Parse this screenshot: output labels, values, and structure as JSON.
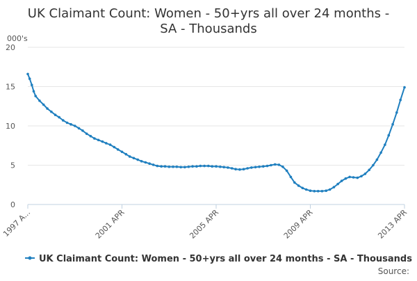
{
  "chart_data": {
    "type": "line",
    "title_line1": "UK Claimant Count: Women - 50+yrs all over 24 months -",
    "title_line2": "SA - Thousands",
    "y_unit": "000's",
    "ylim": [
      0,
      20
    ],
    "y_ticks": [
      0,
      5,
      10,
      15,
      20
    ],
    "xlim": [
      1997.25,
      2013.25
    ],
    "x_ticks": [
      {
        "x": 1997.25,
        "label": "1997 A..."
      },
      {
        "x": 2001.25,
        "label": "2001 APR"
      },
      {
        "x": 2005.25,
        "label": "2005 APR"
      },
      {
        "x": 2009.25,
        "label": "2009 APR"
      },
      {
        "x": 2013.25,
        "label": "2013 APR"
      }
    ],
    "grid": true,
    "legend_position": "bottom",
    "color": "#1f7fbf",
    "series": [
      {
        "name": "UK Claimant Count: Women - 50+yrs all over 24 months - SA - Thousands",
        "points": [
          [
            1997.25,
            16.6
          ],
          [
            1997.33,
            16.0
          ],
          [
            1997.42,
            15.2
          ],
          [
            1997.5,
            14.4
          ],
          [
            1997.58,
            13.8
          ],
          [
            1997.75,
            13.2
          ],
          [
            1997.92,
            12.7
          ],
          [
            1998.08,
            12.2
          ],
          [
            1998.25,
            11.8
          ],
          [
            1998.42,
            11.4
          ],
          [
            1998.58,
            11.1
          ],
          [
            1998.75,
            10.7
          ],
          [
            1998.92,
            10.4
          ],
          [
            1999.08,
            10.2
          ],
          [
            1999.25,
            10.0
          ],
          [
            1999.42,
            9.7
          ],
          [
            1999.58,
            9.4
          ],
          [
            1999.75,
            9.0
          ],
          [
            1999.92,
            8.7
          ],
          [
            2000.08,
            8.4
          ],
          [
            2000.25,
            8.2
          ],
          [
            2000.42,
            8.0
          ],
          [
            2000.58,
            7.8
          ],
          [
            2000.75,
            7.6
          ],
          [
            2000.92,
            7.3
          ],
          [
            2001.08,
            7.0
          ],
          [
            2001.25,
            6.7
          ],
          [
            2001.42,
            6.4
          ],
          [
            2001.58,
            6.1
          ],
          [
            2001.75,
            5.9
          ],
          [
            2001.92,
            5.7
          ],
          [
            2002.08,
            5.5
          ],
          [
            2002.25,
            5.35
          ],
          [
            2002.42,
            5.2
          ],
          [
            2002.58,
            5.05
          ],
          [
            2002.75,
            4.9
          ],
          [
            2002.92,
            4.85
          ],
          [
            2003.08,
            4.85
          ],
          [
            2003.25,
            4.8
          ],
          [
            2003.42,
            4.8
          ],
          [
            2003.58,
            4.8
          ],
          [
            2003.75,
            4.75
          ],
          [
            2003.92,
            4.75
          ],
          [
            2004.08,
            4.8
          ],
          [
            2004.25,
            4.85
          ],
          [
            2004.42,
            4.85
          ],
          [
            2004.58,
            4.9
          ],
          [
            2004.75,
            4.9
          ],
          [
            2004.92,
            4.9
          ],
          [
            2005.08,
            4.85
          ],
          [
            2005.25,
            4.85
          ],
          [
            2005.42,
            4.8
          ],
          [
            2005.58,
            4.75
          ],
          [
            2005.75,
            4.7
          ],
          [
            2005.92,
            4.6
          ],
          [
            2006.08,
            4.5
          ],
          [
            2006.25,
            4.45
          ],
          [
            2006.42,
            4.5
          ],
          [
            2006.58,
            4.6
          ],
          [
            2006.75,
            4.7
          ],
          [
            2006.92,
            4.75
          ],
          [
            2007.08,
            4.8
          ],
          [
            2007.25,
            4.85
          ],
          [
            2007.42,
            4.9
          ],
          [
            2007.58,
            5.0
          ],
          [
            2007.75,
            5.1
          ],
          [
            2007.92,
            5.05
          ],
          [
            2008.08,
            4.8
          ],
          [
            2008.25,
            4.3
          ],
          [
            2008.42,
            3.5
          ],
          [
            2008.58,
            2.8
          ],
          [
            2008.75,
            2.4
          ],
          [
            2008.92,
            2.1
          ],
          [
            2009.08,
            1.9
          ],
          [
            2009.25,
            1.75
          ],
          [
            2009.42,
            1.7
          ],
          [
            2009.58,
            1.7
          ],
          [
            2009.75,
            1.7
          ],
          [
            2009.92,
            1.75
          ],
          [
            2010.08,
            1.9
          ],
          [
            2010.25,
            2.2
          ],
          [
            2010.42,
            2.6
          ],
          [
            2010.58,
            3.0
          ],
          [
            2010.75,
            3.3
          ],
          [
            2010.92,
            3.5
          ],
          [
            2011.08,
            3.45
          ],
          [
            2011.25,
            3.4
          ],
          [
            2011.42,
            3.6
          ],
          [
            2011.58,
            3.9
          ],
          [
            2011.75,
            4.4
          ],
          [
            2011.92,
            5.0
          ],
          [
            2012.08,
            5.7
          ],
          [
            2012.25,
            6.6
          ],
          [
            2012.42,
            7.6
          ],
          [
            2012.58,
            8.8
          ],
          [
            2012.75,
            10.2
          ],
          [
            2012.92,
            11.7
          ],
          [
            2013.08,
            13.3
          ],
          [
            2013.25,
            14.9
          ]
        ]
      }
    ]
  },
  "legend": {
    "label": "UK Claimant Count: Women - 50+yrs all over 24 months - SA - Thousands"
  },
  "source_label": "Source:"
}
